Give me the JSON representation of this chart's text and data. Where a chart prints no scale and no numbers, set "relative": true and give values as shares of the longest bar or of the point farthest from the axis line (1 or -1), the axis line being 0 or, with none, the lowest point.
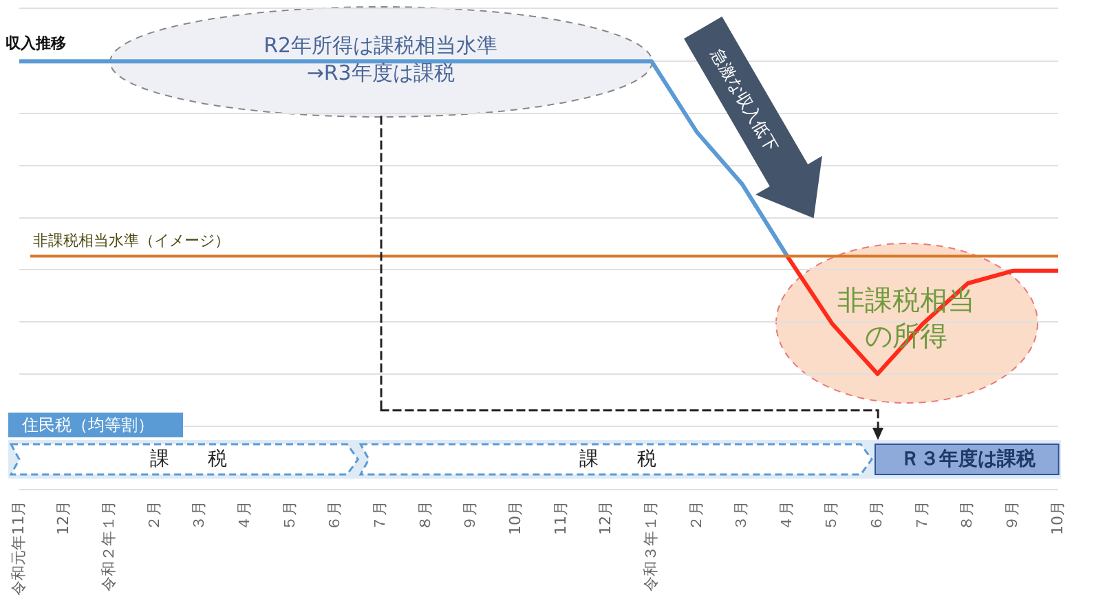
{
  "chart_data": {
    "type": "line",
    "relative": true,
    "grid": "y",
    "legend": false,
    "marker": "none",
    "line_style": "solid",
    "categories": [
      "令和元年11月",
      "12月",
      "令和２年１月",
      "２月",
      "３月",
      "４月",
      "５月",
      "６月",
      "７月",
      "８月",
      "９月",
      "10月",
      "11月",
      "12月",
      "令和３年１月",
      "２月",
      "３月",
      "４月",
      "５月",
      "６月",
      "７月",
      "８月",
      "９月",
      "10月"
    ],
    "series": [
      {
        "name": "収入推移",
        "color": "#5b9bd5",
        "values": [
          1,
          1,
          1,
          1,
          1,
          1,
          1,
          1,
          1,
          1,
          1,
          1,
          1,
          1,
          1,
          0.774,
          0.608,
          0.377,
          null,
          null,
          null,
          null,
          null,
          null
        ]
      },
      {
        "color": "#ff2a1a",
        "values": [
          null,
          null,
          null,
          null,
          null,
          null,
          null,
          null,
          null,
          null,
          null,
          null,
          null,
          null,
          null,
          null,
          null,
          0.377,
          0.16,
          0,
          0.16,
          0.29,
          0.33,
          0.33
        ]
      }
    ],
    "ref_lines": [
      {
        "axis": "y",
        "value": 0.377,
        "label": "非課税相当水準（イメージ）",
        "color": "#d9782b"
      }
    ],
    "annotations": [
      "R2年所得は課税相当水準\n→R3年度は課税",
      "急激な収入低下",
      "非課税相当の所得",
      "住民税（均等割）",
      "課　　税",
      "課　　税",
      "Ｒ３年度は課税"
    ]
  }
}
